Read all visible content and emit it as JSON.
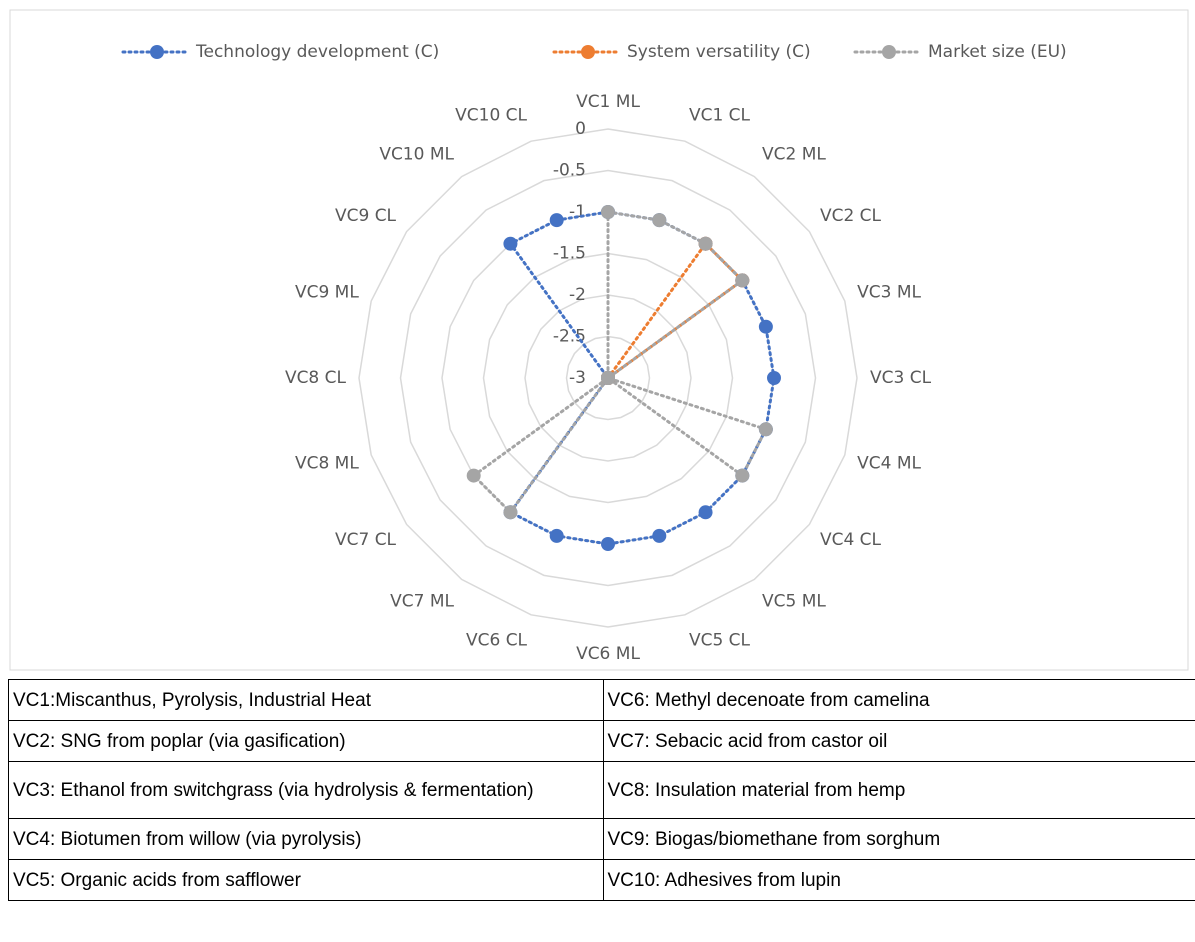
{
  "chart_data": {
    "type": "radar",
    "categories": [
      "VC1 ML",
      "VC1 CL",
      "VC2 ML",
      "VC2 CL",
      "VC3 ML",
      "VC3 CL",
      "VC4 ML",
      "VC4 CL",
      "VC5 ML",
      "VC5 CL",
      "VC6 ML",
      "VC6 CL",
      "VC7 ML",
      "VC7 CL",
      "VC8 ML",
      "VC8 CL",
      "VC9 ML",
      "VC9 CL",
      "VC10 ML",
      "VC10 CL"
    ],
    "series": [
      {
        "name": "Technology development (C)",
        "color": "#4472c4",
        "values": [
          -1,
          -1,
          -1,
          -1,
          -1,
          -1,
          -1,
          -1,
          -1,
          -1,
          -1,
          -1,
          -1,
          -3,
          -3,
          -3,
          -3,
          -3,
          -1,
          -1
        ]
      },
      {
        "name": "System versatility (C)",
        "color": "#ed7d31",
        "values": [
          -3,
          -3,
          -1,
          -1,
          -3,
          -3,
          -3,
          -3,
          -3,
          -3,
          -3,
          -3,
          -3,
          -3,
          -3,
          -3,
          -3,
          -3,
          -3,
          -3
        ]
      },
      {
        "name": "Market size (EU)",
        "color": "#a5a5a5",
        "values": [
          -1,
          -1,
          -1,
          -1,
          -3,
          -3,
          -1,
          -1,
          -3,
          -3,
          -3,
          -3,
          -1,
          -1,
          -3,
          -3,
          -3,
          -3,
          -3,
          -3
        ]
      }
    ],
    "ylim": [
      -3,
      0
    ],
    "yticks": [
      0,
      -0.5,
      -1,
      -1.5,
      -2,
      -2.5,
      -3
    ],
    "grid": true,
    "legend": "top"
  },
  "table": {
    "rows": [
      [
        "VC1:Miscanthus, Pyrolysis, Industrial Heat",
        "VC6: Methyl decenoate from camelina"
      ],
      [
        "VC2: SNG from poplar (via gasification)",
        "VC7: Sebacic acid from castor oil"
      ],
      [
        "VC3: Ethanol from switchgrass (via hydrolysis & fermentation)",
        "VC8: Insulation material from hemp"
      ],
      [
        "VC4: Biotumen from willow (via pyrolysis)",
        "VC9: Biogas/biomethane from sorghum"
      ],
      [
        "VC5: Organic acids from safflower",
        "VC10: Adhesives from lupin"
      ]
    ]
  }
}
